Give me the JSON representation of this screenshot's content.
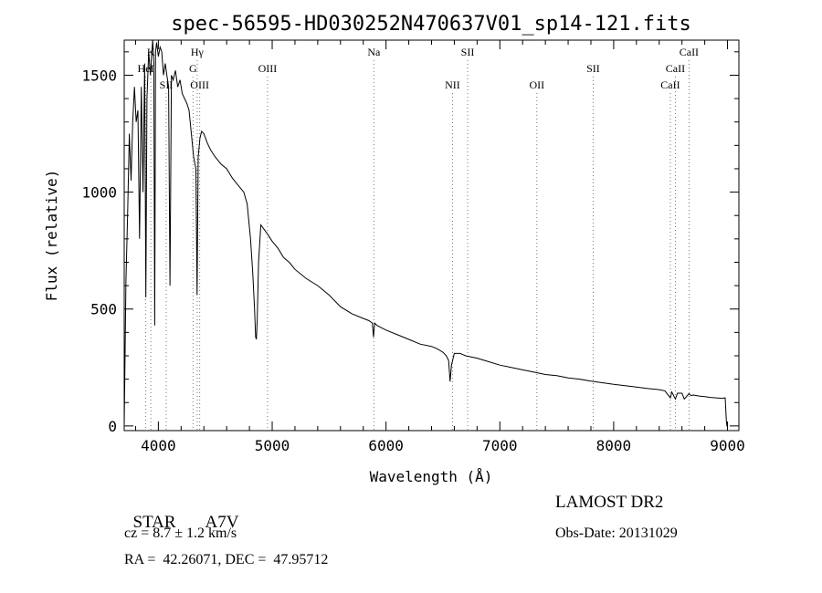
{
  "chart_data": {
    "type": "line",
    "title": "spec-56595-HD030252N470637V01_sp14-121.fits",
    "xlabel": "Wavelength (Å)",
    "ylabel": "Flux (relative)",
    "xlim": [
      3700,
      9100
    ],
    "ylim": [
      -20,
      1650
    ],
    "x_ticks": [
      4000,
      5000,
      6000,
      7000,
      8000,
      9000
    ],
    "y_ticks": [
      0,
      500,
      1000,
      1500
    ],
    "grid": false,
    "series": [
      {
        "x": [
          3700,
          3715,
          3730,
          3745,
          3760,
          3775,
          3790,
          3805,
          3820,
          3835,
          3850,
          3865,
          3880,
          3890,
          3900,
          3915,
          3930,
          3940,
          3950,
          3960,
          3968,
          3975,
          3985,
          4000,
          4015,
          4030,
          4045,
          4060,
          4075,
          4090,
          4102,
          4115,
          4130,
          4150,
          4170,
          4190,
          4210,
          4230,
          4250,
          4270,
          4290,
          4310,
          4330,
          4340,
          4350,
          4365,
          4380,
          4400,
          4430,
          4460,
          4500,
          4550,
          4600,
          4650,
          4700,
          4750,
          4780,
          4810,
          4830,
          4845,
          4855,
          4861,
          4868,
          4880,
          4900,
          4930,
          4960,
          5000,
          5050,
          5100,
          5150,
          5200,
          5300,
          5400,
          5500,
          5600,
          5700,
          5800,
          5850,
          5880,
          5890,
          5900,
          5920,
          6000,
          6100,
          6200,
          6300,
          6400,
          6450,
          6500,
          6530,
          6550,
          6563,
          6575,
          6600,
          6650,
          6700,
          6800,
          6900,
          7000,
          7100,
          7200,
          7300,
          7400,
          7500,
          7600,
          7700,
          7800,
          7900,
          8000,
          8100,
          8200,
          8300,
          8400,
          8450,
          8498,
          8510,
          8542,
          8560,
          8600,
          8620,
          8662,
          8680,
          8700,
          8750,
          8800,
          8850,
          8900,
          8950,
          8980,
          8990,
          8995,
          9000
        ],
        "y": [
          0,
          620,
          900,
          1250,
          1050,
          1300,
          1450,
          1300,
          1350,
          800,
          1450,
          1000,
          1550,
          550,
          1400,
          1600,
          1500,
          1580,
          1650,
          1550,
          430,
          1600,
          1640,
          1580,
          1620,
          1600,
          1500,
          1550,
          1500,
          1450,
          600,
          1500,
          1480,
          1520,
          1450,
          1480,
          1420,
          1400,
          1380,
          1350,
          1250,
          1150,
          1100,
          560,
          1150,
          1230,
          1260,
          1250,
          1210,
          1180,
          1150,
          1120,
          1100,
          1060,
          1030,
          1000,
          950,
          800,
          650,
          500,
          380,
          370,
          450,
          700,
          860,
          840,
          820,
          790,
          760,
          720,
          700,
          670,
          630,
          600,
          560,
          510,
          480,
          460,
          450,
          440,
          380,
          440,
          430,
          410,
          390,
          370,
          350,
          340,
          330,
          315,
          300,
          280,
          190,
          260,
          310,
          310,
          300,
          290,
          275,
          260,
          250,
          240,
          230,
          220,
          215,
          205,
          200,
          192,
          185,
          178,
          172,
          166,
          160,
          155,
          150,
          120,
          145,
          115,
          140,
          140,
          115,
          138,
          130,
          132,
          128,
          125,
          122,
          120,
          118,
          120,
          20,
          0,
          0
        ]
      }
    ],
    "line_markers": [
      {
        "label": "K",
        "wavelength": 3934,
        "row": 0
      },
      {
        "label": "HeI",
        "wavelength": 3889,
        "row": 1
      },
      {
        "label": "SII",
        "wavelength": 4069,
        "row": 2
      },
      {
        "label": "Hγ",
        "wavelength": 4341,
        "row": 0
      },
      {
        "label": "G",
        "wavelength": 4304,
        "row": 1
      },
      {
        "label": "OIII",
        "wavelength": 4363,
        "row": 2
      },
      {
        "label": "OIII",
        "wavelength": 4959,
        "row": 1
      },
      {
        "label": "Na",
        "wavelength": 5893,
        "row": 0
      },
      {
        "label": "SII",
        "wavelength": 6717,
        "row": 0
      },
      {
        "label": "NII",
        "wavelength": 6584,
        "row": 2
      },
      {
        "label": "OII",
        "wavelength": 7325,
        "row": 2
      },
      {
        "label": "SII",
        "wavelength": 7820,
        "row": 1
      },
      {
        "label": "CaII",
        "wavelength": 8662,
        "row": 0
      },
      {
        "label": "CaII",
        "wavelength": 8542,
        "row": 1
      },
      {
        "label": "CaII",
        "wavelength": 8498,
        "row": 2
      }
    ]
  },
  "info": {
    "object_type": "STAR",
    "subclass": "A7V",
    "cz": "cz = 8.7 ± 1.2 km/s",
    "coords": "RA =  42.26071, DEC =  47.95712",
    "survey": "LAMOST DR2",
    "obs_date": "Obs-Date: 20131029"
  }
}
